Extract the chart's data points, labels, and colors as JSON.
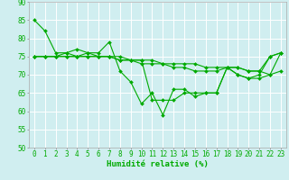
{
  "background_color": "#d0eef0",
  "grid_color": "#ffffff",
  "line_color": "#00aa00",
  "marker_color": "#00aa00",
  "xlabel": "Humidité relative (%)",
  "xlabel_fontsize": 6.5,
  "tick_fontsize": 5.5,
  "ylim": [
    50,
    90
  ],
  "xlim": [
    -0.5,
    23.5
  ],
  "yticks": [
    50,
    55,
    60,
    65,
    70,
    75,
    80,
    85,
    90
  ],
  "xticks": [
    0,
    1,
    2,
    3,
    4,
    5,
    6,
    7,
    8,
    9,
    10,
    11,
    12,
    13,
    14,
    15,
    16,
    17,
    18,
    19,
    20,
    21,
    22,
    23
  ],
  "series": [
    [
      85,
      82,
      76,
      76,
      75,
      76,
      76,
      79,
      71,
      68,
      62,
      65,
      59,
      66,
      66,
      64,
      65,
      65,
      72,
      70,
      69,
      70,
      75,
      76
    ],
    [
      75,
      75,
      75,
      75,
      75,
      75,
      75,
      75,
      75,
      74,
      74,
      74,
      73,
      73,
      73,
      73,
      72,
      72,
      72,
      72,
      71,
      71,
      75,
      76
    ],
    [
      75,
      75,
      75,
      75,
      75,
      75,
      75,
      75,
      74,
      74,
      74,
      63,
      63,
      63,
      65,
      65,
      65,
      65,
      72,
      70,
      69,
      69,
      70,
      71
    ],
    [
      75,
      75,
      75,
      76,
      77,
      76,
      75,
      75,
      74,
      74,
      73,
      73,
      73,
      72,
      72,
      71,
      71,
      71,
      72,
      72,
      71,
      71,
      70,
      76
    ]
  ]
}
